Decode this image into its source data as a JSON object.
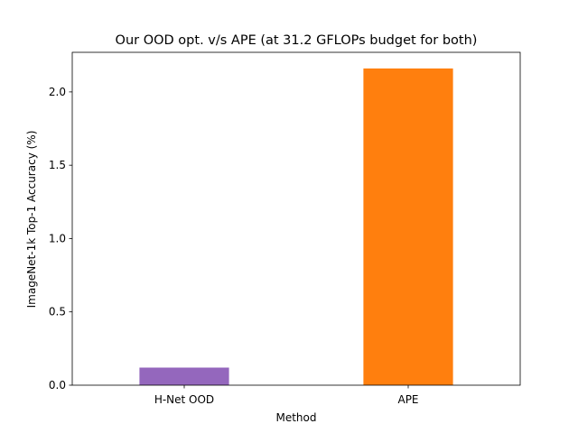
{
  "chart_data": {
    "type": "bar",
    "title": "Our OOD opt. v/s APE (at 31.2 GFLOPs budget for both)",
    "xlabel": "Method",
    "ylabel": "ImageNet-1k Top-1 Accuracy (%)",
    "categories": [
      "H-Net OOD",
      "APE"
    ],
    "values": [
      0.12,
      2.16
    ],
    "colors": [
      "#9467bd",
      "#ff7f0e"
    ],
    "ylim": [
      0,
      2.27
    ],
    "yticks": [
      0.0,
      0.5,
      1.0,
      1.5,
      2.0
    ],
    "ytick_labels": [
      "0.0",
      "0.5",
      "1.0",
      "1.5",
      "2.0"
    ],
    "grid": false,
    "legend": "none"
  }
}
